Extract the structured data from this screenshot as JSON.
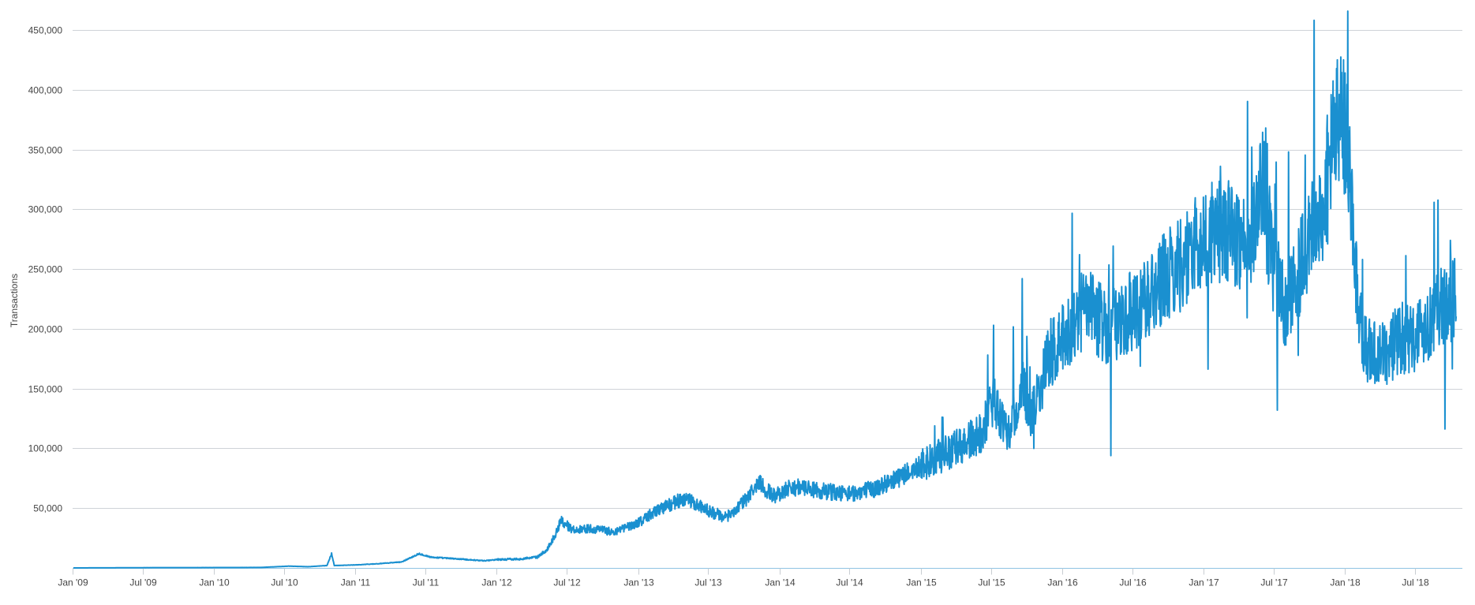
{
  "chart_data": {
    "type": "line",
    "title": "",
    "xlabel": "",
    "ylabel": "Transactions",
    "ylim": [
      0,
      450000
    ],
    "xlim": [
      "2009-01-01",
      "2018-10-31"
    ],
    "grid": true,
    "y_ticks": [
      {
        "value": 50000,
        "label": "50,000"
      },
      {
        "value": 100000,
        "label": "100,000"
      },
      {
        "value": 150000,
        "label": "150,000"
      },
      {
        "value": 200000,
        "label": "200,000"
      },
      {
        "value": 250000,
        "label": "250,000"
      },
      {
        "value": 300000,
        "label": "300,000"
      },
      {
        "value": 350000,
        "label": "350,000"
      },
      {
        "value": 400000,
        "label": "400,000"
      },
      {
        "value": 450000,
        "label": "450,000"
      }
    ],
    "x_ticks": [
      {
        "date": "2009-01-01",
        "label": "Jan '09"
      },
      {
        "date": "2009-07-01",
        "label": "Jul '09"
      },
      {
        "date": "2010-01-01",
        "label": "Jan '10"
      },
      {
        "date": "2010-07-01",
        "label": "Jul '10"
      },
      {
        "date": "2011-01-01",
        "label": "Jan '11"
      },
      {
        "date": "2011-07-01",
        "label": "Jul '11"
      },
      {
        "date": "2012-01-01",
        "label": "Jan '12"
      },
      {
        "date": "2012-07-01",
        "label": "Jul '12"
      },
      {
        "date": "2013-01-01",
        "label": "Jan '13"
      },
      {
        "date": "2013-07-01",
        "label": "Jul '13"
      },
      {
        "date": "2014-01-01",
        "label": "Jan '14"
      },
      {
        "date": "2014-07-01",
        "label": "Jul '14"
      },
      {
        "date": "2015-01-01",
        "label": "Jan '15"
      },
      {
        "date": "2015-07-01",
        "label": "Jul '15"
      },
      {
        "date": "2016-01-01",
        "label": "Jan '16"
      },
      {
        "date": "2016-07-01",
        "label": "Jul '16"
      },
      {
        "date": "2017-01-01",
        "label": "Jan '17"
      },
      {
        "date": "2017-07-01",
        "label": "Jul '17"
      },
      {
        "date": "2018-01-01",
        "label": "Jan '18"
      },
      {
        "date": "2018-07-01",
        "label": "Jul '18"
      }
    ],
    "series": [
      {
        "color": "#1a90d0",
        "anchors": [
          [
            "2009-01-03",
            1
          ],
          [
            "2009-07-01",
            200
          ],
          [
            "2010-01-01",
            300
          ],
          [
            "2010-05-01",
            400
          ],
          [
            "2010-07-15",
            1500
          ],
          [
            "2010-09-01",
            1000
          ],
          [
            "2010-10-20",
            2000
          ],
          [
            "2010-11-01",
            12000
          ],
          [
            "2010-11-08",
            2000
          ],
          [
            "2011-01-01",
            2500
          ],
          [
            "2011-03-01",
            3500
          ],
          [
            "2011-05-01",
            5000
          ],
          [
            "2011-06-15",
            12000
          ],
          [
            "2011-07-15",
            9000
          ],
          [
            "2011-09-01",
            8000
          ],
          [
            "2011-12-01",
            6000
          ],
          [
            "2012-01-01",
            7000
          ],
          [
            "2012-03-01",
            7500
          ],
          [
            "2012-04-15",
            9000
          ],
          [
            "2012-05-10",
            15000
          ],
          [
            "2012-06-01",
            28000
          ],
          [
            "2012-06-15",
            40000
          ],
          [
            "2012-07-15",
            32000
          ],
          [
            "2012-09-01",
            33000
          ],
          [
            "2012-11-01",
            30000
          ],
          [
            "2013-01-01",
            38000
          ],
          [
            "2013-03-01",
            50000
          ],
          [
            "2013-05-01",
            58000
          ],
          [
            "2013-07-01",
            48000
          ],
          [
            "2013-08-15",
            42000
          ],
          [
            "2013-10-01",
            55000
          ],
          [
            "2013-11-10",
            72000
          ],
          [
            "2013-12-15",
            60000
          ],
          [
            "2014-02-01",
            68000
          ],
          [
            "2014-04-01",
            65000
          ],
          [
            "2014-07-01",
            62000
          ],
          [
            "2014-09-01",
            66000
          ],
          [
            "2014-11-01",
            75000
          ],
          [
            "2015-01-01",
            85000
          ],
          [
            "2015-03-01",
            95000
          ],
          [
            "2015-06-01",
            110000
          ],
          [
            "2015-07-10",
            140000
          ],
          [
            "2015-08-15",
            115000
          ],
          [
            "2015-09-20",
            150000
          ],
          [
            "2015-10-15",
            128000
          ],
          [
            "2015-12-01",
            180000
          ],
          [
            "2016-01-01",
            190000
          ],
          [
            "2016-03-01",
            220000
          ],
          [
            "2016-05-01",
            200000
          ],
          [
            "2016-07-01",
            215000
          ],
          [
            "2016-09-01",
            235000
          ],
          [
            "2016-11-01",
            255000
          ],
          [
            "2017-01-01",
            275000
          ],
          [
            "2017-03-01",
            285000
          ],
          [
            "2017-05-01",
            270000
          ],
          [
            "2017-06-01",
            320000
          ],
          [
            "2017-07-01",
            250000
          ],
          [
            "2017-08-01",
            215000
          ],
          [
            "2017-09-15",
            260000
          ],
          [
            "2017-11-01",
            300000
          ],
          [
            "2017-12-10",
            370000
          ],
          [
            "2017-12-25",
            380000
          ],
          [
            "2018-01-15",
            330000
          ],
          [
            "2018-02-01",
            230000
          ],
          [
            "2018-02-20",
            185000
          ],
          [
            "2018-04-01",
            175000
          ],
          [
            "2018-05-15",
            190000
          ],
          [
            "2018-07-01",
            195000
          ],
          [
            "2018-08-15",
            210000
          ],
          [
            "2018-09-30",
            225000
          ],
          [
            "2018-10-15",
            225000
          ]
        ]
      }
    ]
  }
}
